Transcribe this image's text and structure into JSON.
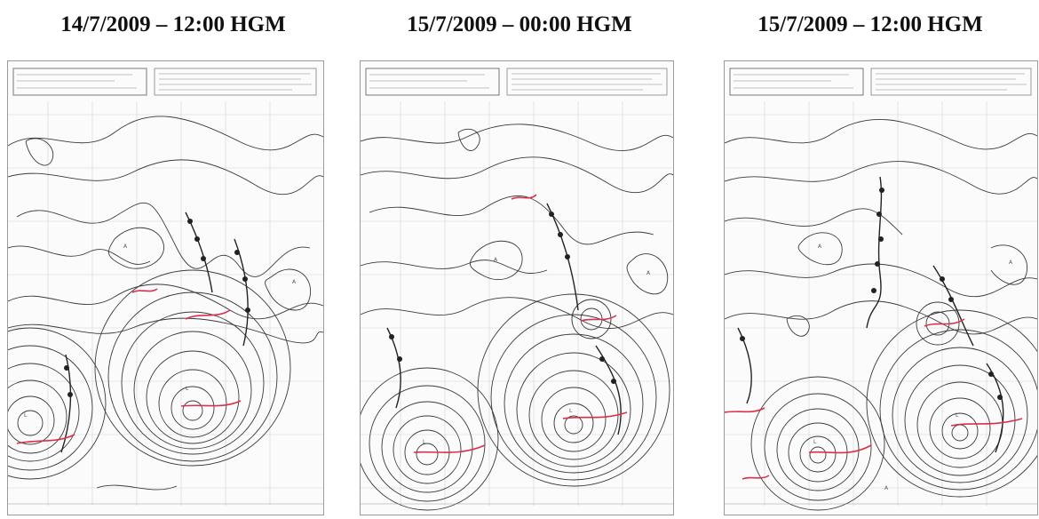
{
  "panels": [
    {
      "title": "14/7/2009 – 12:00 HGM",
      "map_icon": "synoptic-pressure-chart"
    },
    {
      "title": "15/7/2009 – 00:00 HGM",
      "map_icon": "synoptic-pressure-chart"
    },
    {
      "title": "15/7/2009 – 12:00 HGM",
      "map_icon": "synoptic-pressure-chart"
    }
  ],
  "colors": {
    "isobar": "#3a3a3a",
    "front_red": "#d8324a",
    "grid": "#d4d4d4",
    "paper": "#fbfbfb"
  }
}
